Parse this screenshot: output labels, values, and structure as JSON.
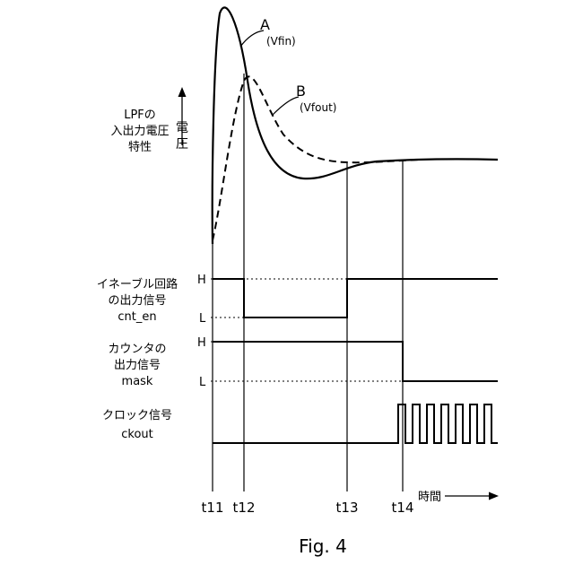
{
  "figure": {
    "caption": "Fig. 4",
    "vertical_axis_label": [
      "電",
      "圧"
    ],
    "time_label": "時間",
    "time_ticks": [
      "t11",
      "t12",
      "t13",
      "t14"
    ]
  },
  "graph": {
    "name_lines": [
      "LPFの",
      "入出力電圧",
      "特性"
    ],
    "curve_a": {
      "label": "A",
      "sublabel": "(Vfin)"
    },
    "curve_b": {
      "label": "B",
      "sublabel": "(Vfout)"
    }
  },
  "signals": {
    "cnt_en": {
      "name_lines": [
        "イネーブル回路",
        "の出力信号",
        "cnt_en"
      ],
      "high": "H",
      "low": "L"
    },
    "mask": {
      "name_lines": [
        "カウンタの",
        "出力信号",
        "mask"
      ],
      "high": "H",
      "low": "L"
    },
    "ckout": {
      "name_lines": [
        "クロック信号",
        "ckout"
      ]
    }
  }
}
